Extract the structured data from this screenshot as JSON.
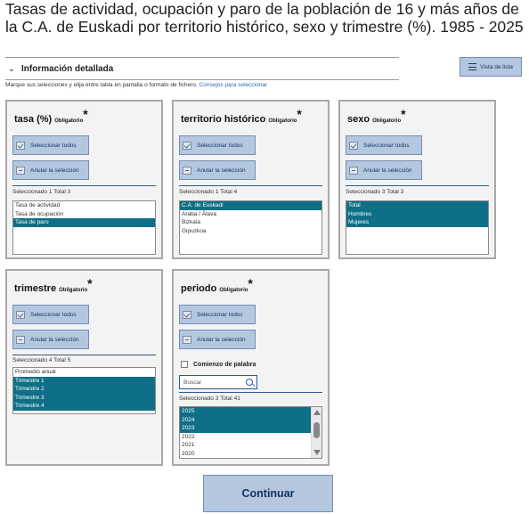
{
  "page": {
    "title": "Tasas de actividad, ocupación y paro de la población de 16 y más años de la C.A. de Euskadi por territorio histórico, sexo y trimestre (%). 1985 - 2025"
  },
  "detail": {
    "label": "Información detallada",
    "list_view_button": "Vista de lista",
    "instructions": "Marque sus selecciones y elija entre tabla en pantalla o formato de fichero.",
    "instructions_link": "Consejos para seleccionar"
  },
  "common": {
    "required": "Obligatorio",
    "asterisk": "*",
    "select_all": "Seleccionar todos",
    "deselect": "Anular la selección"
  },
  "panels": {
    "tasa": {
      "title": "tasa (%)",
      "count": "Seleccionado 1 Total 3",
      "options": [
        {
          "label": "Tasa de actividad",
          "selected": false
        },
        {
          "label": "Tasa de ocupación",
          "selected": false
        },
        {
          "label": "Tasa de paro",
          "selected": true
        }
      ]
    },
    "territorio": {
      "title": "territorio histórico",
      "count": "Seleccionado 1 Total 4",
      "options": [
        {
          "label": "C.A. de Euskadi",
          "selected": true
        },
        {
          "label": "Araba / Álava",
          "selected": false
        },
        {
          "label": "Bizkaia",
          "selected": false
        },
        {
          "label": "Gipuzkoa",
          "selected": false
        }
      ]
    },
    "sexo": {
      "title": "sexo",
      "count": "Seleccionado 3 Total 3",
      "options": [
        {
          "label": "Total",
          "selected": true
        },
        {
          "label": "Hombres",
          "selected": true
        },
        {
          "label": "Mujeres",
          "selected": true
        }
      ]
    },
    "trimestre": {
      "title": "trimestre",
      "count": "Seleccionado 4 Total 5",
      "options": [
        {
          "label": "Promedio anual",
          "selected": false
        },
        {
          "label": "Trimestre 1",
          "selected": true
        },
        {
          "label": "Trimestre 2",
          "selected": true
        },
        {
          "label": "Trimestre 3",
          "selected": true
        },
        {
          "label": "Trimestre 4",
          "selected": true
        }
      ]
    },
    "periodo": {
      "title": "periodo",
      "checkbox_label": "Comienzo de palabra",
      "search_placeholder": "Buscar",
      "count": "Seleccionado 3 Total 41",
      "options": [
        {
          "label": "2025",
          "selected": true
        },
        {
          "label": "2024",
          "selected": true
        },
        {
          "label": "2023",
          "selected": true
        },
        {
          "label": "2022",
          "selected": false
        },
        {
          "label": "2021",
          "selected": false
        },
        {
          "label": "2020",
          "selected": false
        }
      ]
    }
  },
  "footer": {
    "continue_label": "Continuar"
  },
  "colors": {
    "button_bg": "#b5c7de",
    "button_text": "#12325e",
    "selected_bg": "#0e6f86",
    "panel_bg": "#f3f3f3"
  }
}
